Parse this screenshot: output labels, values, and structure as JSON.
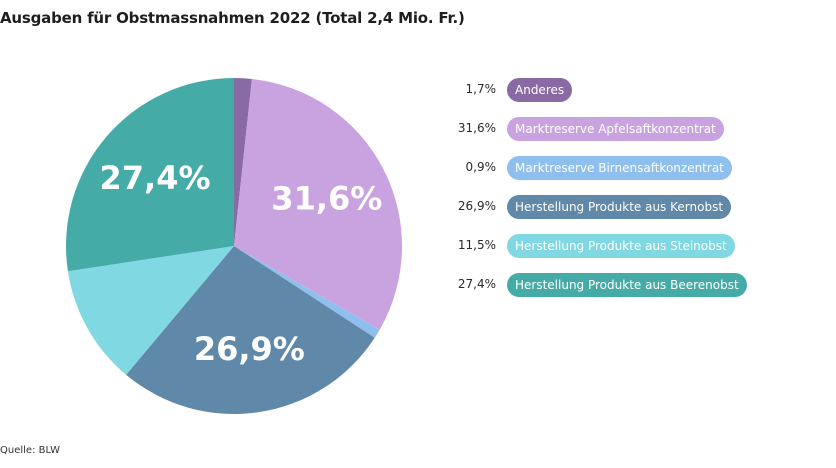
{
  "chart_data": {
    "type": "pie",
    "title": "Ausgaben für Obstmassnahmen 2022 (Total 2,4 Mio. Fr.)",
    "slices": [
      {
        "label": "Anderes",
        "value": 1.7,
        "display": "1,7%",
        "color": "#8a6aa4",
        "slice_label": ""
      },
      {
        "label": "Marktreserve Apfelsaftkonzentrat",
        "value": 31.6,
        "display": "31,6%",
        "color": "#c9a3e0",
        "slice_label": "31,6%"
      },
      {
        "label": "Marktreserve Birnensaftkonzentrat",
        "value": 0.9,
        "display": "0,9%",
        "color": "#8fbfef",
        "slice_label": ""
      },
      {
        "label": "Herstellung Produkte aus Kernobst",
        "value": 26.9,
        "display": "26,9%",
        "color": "#5f88a9",
        "slice_label": "26,9%"
      },
      {
        "label": "Herstellung Produkte aus Steinobst",
        "value": 11.5,
        "display": "11,5%",
        "color": "#80d8e2",
        "slice_label": ""
      },
      {
        "label": "Herstellung Produkte aus Beerenobst",
        "value": 27.4,
        "display": "27,4%",
        "color": "#45aba6",
        "slice_label": "27,4%"
      }
    ],
    "legend_position": "right"
  },
  "source": "Quelle: BLW"
}
